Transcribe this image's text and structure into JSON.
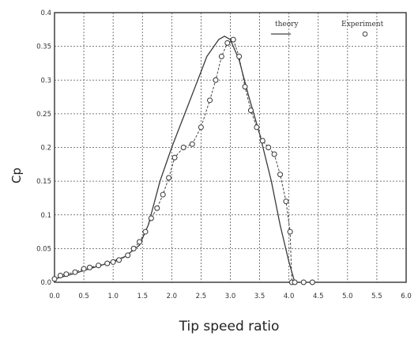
{
  "chart_data": {
    "type": "line",
    "title": "",
    "xlabel": "Tip speed ratio",
    "ylabel": "Cp",
    "xlim": [
      0.0,
      6.0
    ],
    "ylim": [
      0.0,
      0.4
    ],
    "grid": true,
    "legend_position": "top-right",
    "x_ticks": [
      "0.0",
      "0.5",
      "1.0",
      "1.5",
      "2.0",
      "2.5",
      "3.0",
      "3.5",
      "4.0",
      "4.5",
      "5.0",
      "5.5",
      "6.0"
    ],
    "y_ticks": [
      "0.0",
      "0.05",
      "0.1",
      "0.15",
      "0.2",
      "0.25",
      "0.3",
      "0.35",
      "0.4"
    ],
    "series": [
      {
        "name": "theory",
        "style": "solid-line",
        "x": [
          0.0,
          0.3,
          0.6,
          0.9,
          1.2,
          1.45,
          1.6,
          1.8,
          2.0,
          2.2,
          2.4,
          2.6,
          2.8,
          2.9,
          3.0,
          3.15,
          3.3,
          3.5,
          3.7,
          3.85,
          4.0,
          4.1
        ],
        "y": [
          0.005,
          0.012,
          0.02,
          0.028,
          0.038,
          0.055,
          0.085,
          0.15,
          0.2,
          0.245,
          0.29,
          0.335,
          0.36,
          0.365,
          0.36,
          0.33,
          0.28,
          0.22,
          0.15,
          0.085,
          0.03,
          0.0
        ]
      },
      {
        "name": "experiment",
        "style": "circle-markers-dashed",
        "x": [
          0.0,
          0.1,
          0.2,
          0.35,
          0.5,
          0.6,
          0.75,
          0.9,
          1.0,
          1.1,
          1.25,
          1.35,
          1.45,
          1.55,
          1.65,
          1.75,
          1.85,
          1.95,
          2.05,
          2.2,
          2.35,
          2.5,
          2.65,
          2.75,
          2.85,
          2.95,
          3.05,
          3.15,
          3.25,
          3.35,
          3.45,
          3.55,
          3.65,
          3.75,
          3.85,
          3.95,
          4.02,
          4.05,
          4.1,
          4.25,
          4.4
        ],
        "y": [
          0.005,
          0.01,
          0.012,
          0.015,
          0.02,
          0.022,
          0.025,
          0.028,
          0.03,
          0.033,
          0.04,
          0.05,
          0.06,
          0.075,
          0.095,
          0.11,
          0.13,
          0.155,
          0.185,
          0.2,
          0.205,
          0.23,
          0.27,
          0.3,
          0.335,
          0.355,
          0.36,
          0.335,
          0.29,
          0.255,
          0.23,
          0.21,
          0.2,
          0.19,
          0.16,
          0.12,
          0.075,
          0.0,
          0.0,
          0.0,
          0.0
        ]
      }
    ],
    "legend_entries": [
      "theory",
      "Experiment"
    ]
  }
}
